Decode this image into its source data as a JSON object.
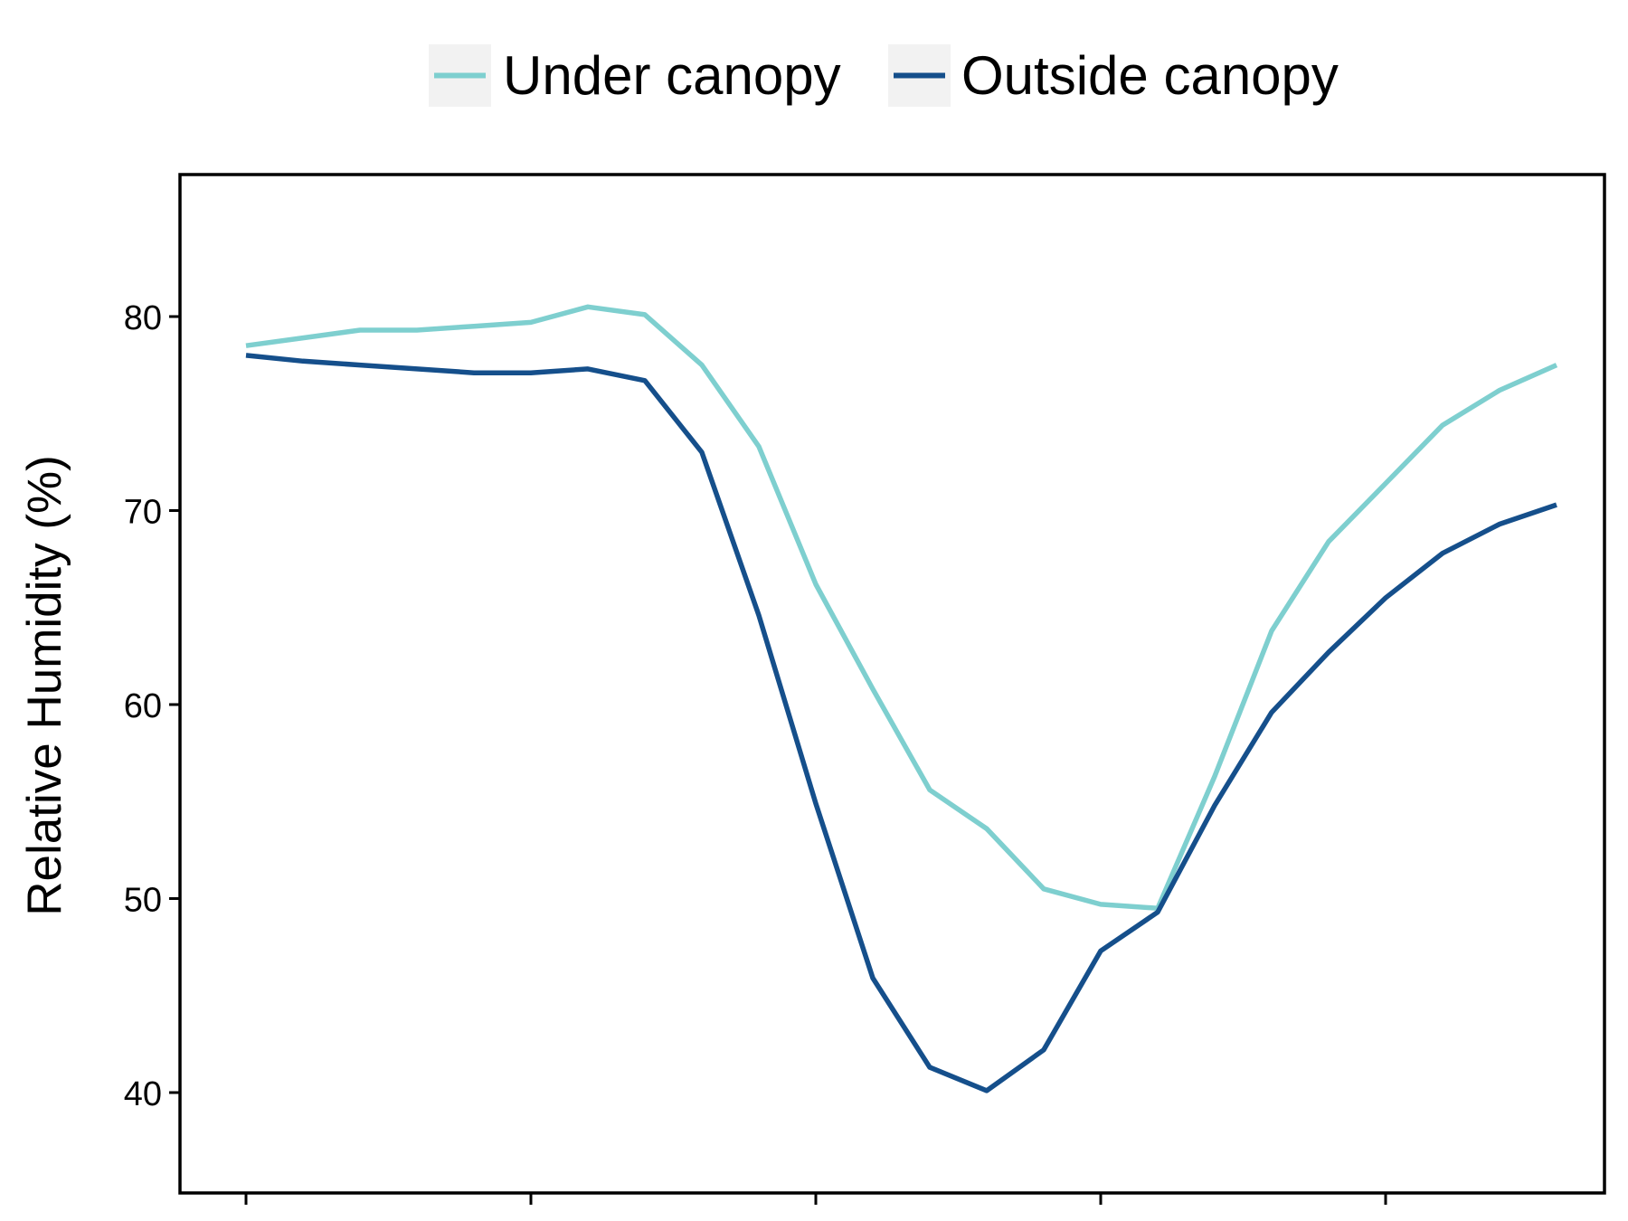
{
  "chart_data": {
    "type": "line",
    "ylabel": "Relative Humidity (%)",
    "ylim": [
      35,
      87
    ],
    "yticks": [
      40,
      50,
      60,
      70,
      80
    ],
    "grid": false,
    "legend_position": "top",
    "series": [
      {
        "name": "Under canopy",
        "color": "#7ecfcf",
        "x": [
          0,
          1,
          2,
          3,
          4,
          5,
          6,
          7,
          8,
          9,
          10,
          11,
          12,
          13,
          14,
          15,
          16,
          17,
          18,
          19,
          20,
          21,
          22,
          23
        ],
        "values": [
          78.5,
          78.9,
          79.3,
          79.3,
          79.5,
          79.7,
          80.5,
          80.1,
          77.5,
          73.3,
          66.2,
          60.8,
          55.6,
          53.6,
          50.5,
          49.7,
          49.5,
          56.3,
          63.8,
          68.4,
          71.4,
          74.4,
          76.2,
          77.5
        ],
        "point_labels": [
          "",
          "",
          "",
          "",
          "",
          "",
          "",
          "",
          "",
          "",
          "",
          "",
          "",
          "",
          "",
          "",
          "",
          "",
          "",
          "",
          "",
          "",
          "",
          ""
        ]
      },
      {
        "name": "Outside canopy",
        "color": "#154f8b",
        "x": [
          0,
          1,
          2,
          3,
          4,
          5,
          6,
          7,
          8,
          9,
          10,
          11,
          12,
          13,
          14,
          15,
          16,
          17,
          18,
          19,
          20,
          21,
          22,
          23
        ],
        "values": [
          78.0,
          77.7,
          77.5,
          77.3,
          77.1,
          77.1,
          77.3,
          76.7,
          73.0,
          64.6,
          54.9,
          45.9,
          41.3,
          40.1,
          42.2,
          47.3,
          49.3,
          54.8,
          59.6,
          62.7,
          65.5,
          67.8,
          69.3,
          70.3
        ],
        "point_labels": [
          "",
          "",
          "",
          "",
          "",
          "",
          "",
          "",
          "",
          "",
          "",
          "",
          "",
          "",
          "",
          "",
          "",
          "",
          "",
          "",
          "",
          "",
          "",
          ""
        ]
      }
    ]
  }
}
